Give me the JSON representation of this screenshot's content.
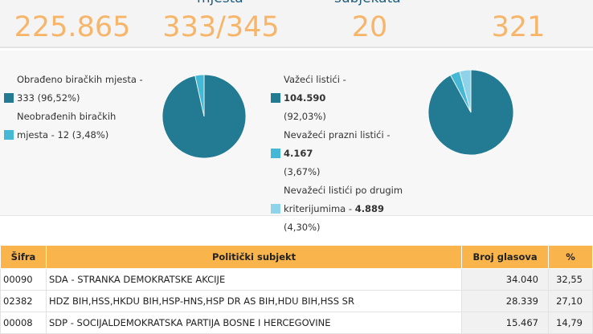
{
  "stats": {
    "labels": [
      "mjesta",
      "subjekata"
    ],
    "values": [
      "225.865",
      "333/345",
      "20",
      "321"
    ]
  },
  "pies": [
    {
      "slices": [
        {
          "label": "Obrađeno biračkih mjesta -",
          "count": "333",
          "percent": "(96,52%)",
          "value": 96.52,
          "color": "#237b93"
        },
        {
          "label": "Neobrađenih biračkih mjesta -",
          "count": "12",
          "percent": "(3,48%)",
          "value": 3.48,
          "color": "#45b8d6"
        }
      ]
    },
    {
      "slices": [
        {
          "label": "Važeći listići -",
          "count": "104.590",
          "percent": "(92,03%)",
          "value": 92.03,
          "color": "#237b93"
        },
        {
          "label": "Nevažeći prazni listići -",
          "count": "4.167",
          "percent": "(3,67%)",
          "value": 3.67,
          "color": "#45b8d6"
        },
        {
          "label": "Nevažeći listići po drugim kriterijumima -",
          "count": "4.889",
          "percent": "(4,30%)",
          "value": 4.3,
          "color": "#8fd3ea"
        }
      ]
    }
  ],
  "table": {
    "header": [
      "Šifra",
      "Politički subjekt",
      "Broj glasova",
      "%"
    ],
    "rows": [
      [
        "00090",
        "SDA - STRANKA DEMOKRATSKE AKCIJE",
        "34.040",
        "32,55"
      ],
      [
        "02382",
        "HDZ BIH,HSS,HKDU BIH,HSP-HNS,HSP DR AS BIH,HDU BIH,HSS SR",
        "28.339",
        "27,10"
      ],
      [
        "00008",
        "SDP - SOCIJALDEMOKRATSKA PARTIJA BOSNE I HERCEGOVINE",
        "15.467",
        "14,79"
      ]
    ]
  }
}
